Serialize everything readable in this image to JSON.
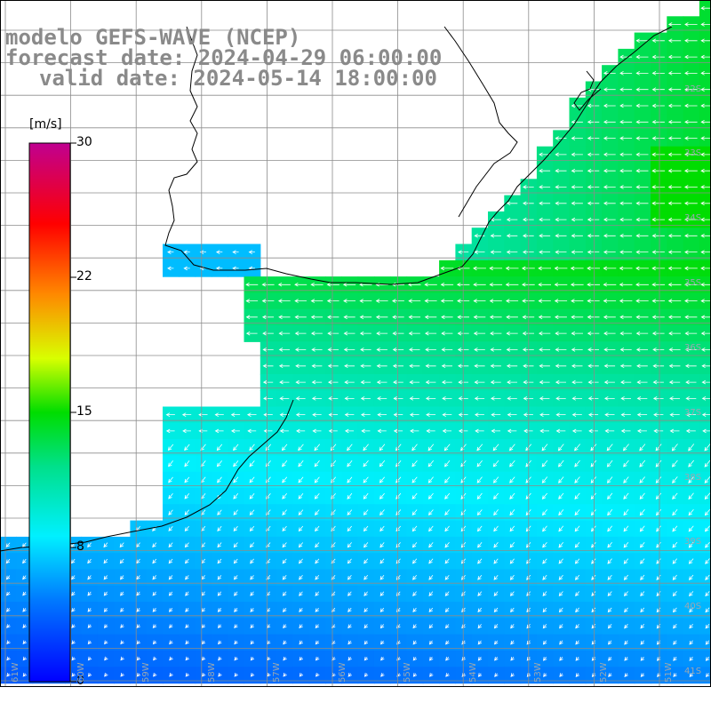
{
  "header": {
    "model": "modelo GEFS-WAVE (NCEP)",
    "forecast": "forecast date: 2024-04-29 06:00:00",
    "valid": "valid date: 2024-05-14 18:00:00"
  },
  "colorbar": {
    "unit": "[m/s]",
    "ticks": [
      "30",
      "22",
      "15",
      "8",
      "0"
    ],
    "range": [
      0,
      30
    ]
  },
  "lat_labels": [
    "32S",
    "33S",
    "34S",
    "35S",
    "36S",
    "37S",
    "38S",
    "39S",
    "40S",
    "41S"
  ],
  "lon_labels": [
    "61W",
    "60W",
    "59W",
    "58W",
    "57W",
    "56W",
    "55W",
    "54W",
    "53W",
    "52W",
    "51W"
  ],
  "colors": {
    "land": "#ffffff",
    "grid": "#8c8c8c",
    "coast": "#000000",
    "arrows": "#ffffff",
    "title": "#8a8a8a"
  }
}
